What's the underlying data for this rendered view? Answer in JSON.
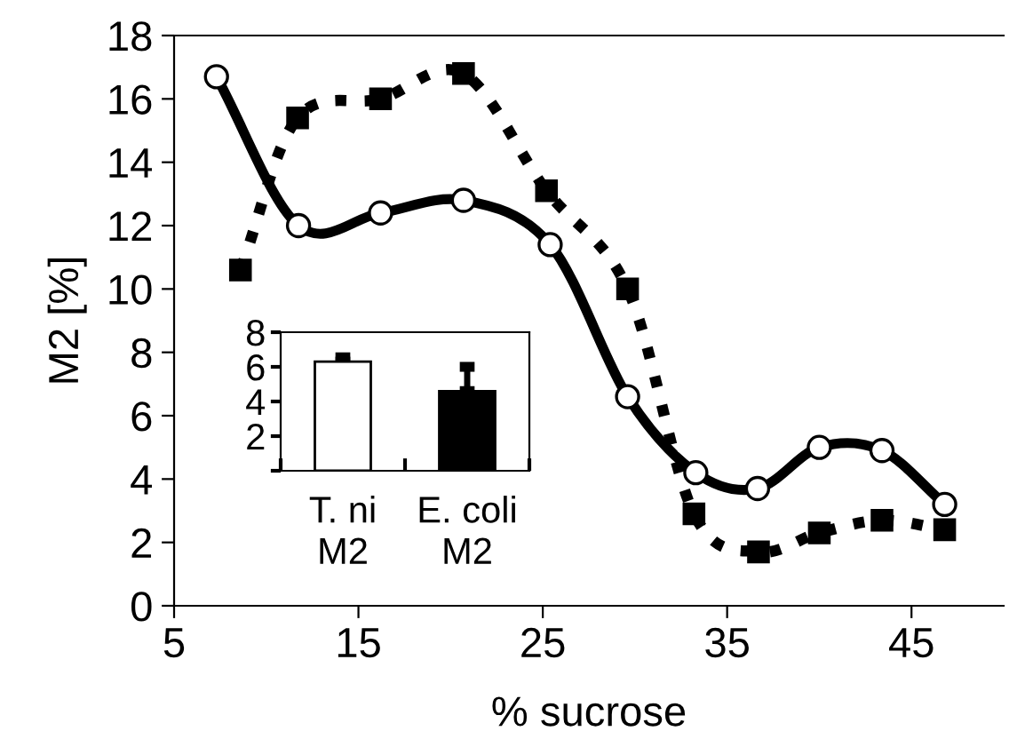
{
  "chart_data": [
    {
      "type": "line",
      "xlabel": "% sucrose",
      "ylabel": "M2 [%]",
      "xlim": [
        5,
        50
      ],
      "ylim": [
        0,
        18
      ],
      "xticks": [
        5,
        15,
        25,
        35,
        45
      ],
      "yticks": [
        0,
        2,
        4,
        6,
        8,
        10,
        12,
        14,
        16,
        18
      ],
      "grid": false,
      "legend": false,
      "series": [
        {
          "color": "#000000",
          "marker": "circle",
          "line_style": "solid",
          "x": [
            7.3,
            11.75,
            16.2,
            20.7,
            25.4,
            29.6,
            33.3,
            36.65,
            40.0,
            43.4,
            46.8
          ],
          "values": [
            16.7,
            12.0,
            12.4,
            12.8,
            11.4,
            6.6,
            4.2,
            3.7,
            5.0,
            4.9,
            3.2
          ]
        },
        {
          "color": "#000000",
          "marker": "square",
          "line_style": "dotted",
          "x": [
            8.6,
            11.7,
            16.2,
            20.7,
            25.2,
            29.6,
            33.2,
            36.7,
            40.0,
            43.4,
            46.8
          ],
          "values": [
            10.6,
            15.4,
            16.0,
            16.8,
            13.1,
            10.0,
            2.9,
            1.7,
            2.3,
            2.7,
            2.4
          ]
        }
      ]
    },
    {
      "type": "bar",
      "categories": [
        "T. ni\nM2",
        "E. coli\nM2"
      ],
      "values": [
        6.3,
        4.6
      ],
      "colors": [
        "#ffffff",
        "#000000"
      ],
      "errors": [
        0.25,
        1.4
      ],
      "ylim": [
        0,
        8
      ],
      "yticks": [
        {
          "value": 0,
          "label": null
        },
        2,
        4,
        6,
        8
      ],
      "grid": false
    }
  ]
}
